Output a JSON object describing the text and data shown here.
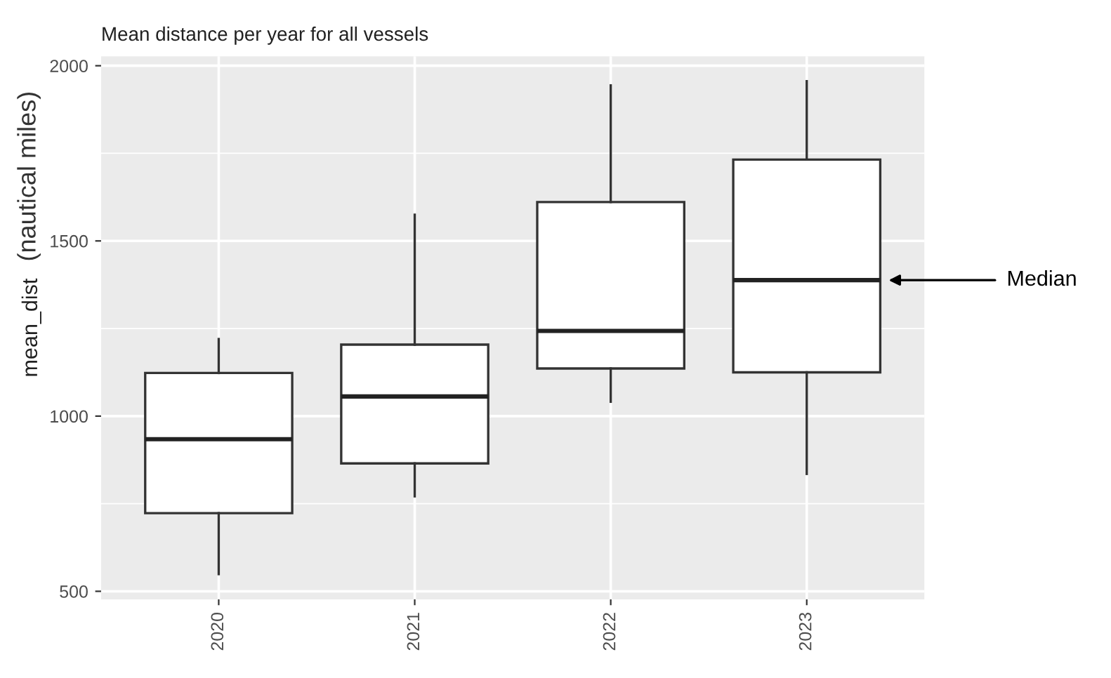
{
  "chart_data": {
    "type": "box",
    "title": "Mean distance per year for all vessels",
    "ylabel": "mean_dist",
    "categories": [
      "2020",
      "2021",
      "2022",
      "2023"
    ],
    "boxes": [
      {
        "low": 549,
        "q1": 723,
        "median": 934,
        "q3": 1123,
        "high": 1220
      },
      {
        "low": 771,
        "q1": 865,
        "median": 1056,
        "q3": 1204,
        "high": 1575
      },
      {
        "low": 1041,
        "q1": 1136,
        "median": 1243,
        "q3": 1611,
        "high": 1944
      },
      {
        "low": 835,
        "q1": 1125,
        "median": 1388,
        "q3": 1732,
        "high": 1956
      }
    ],
    "ylim": [
      477,
      2027
    ],
    "yticks": [
      500,
      1000,
      1500,
      2000
    ],
    "grid": true,
    "annotations": [
      "(nautical miles)",
      "Median"
    ]
  }
}
